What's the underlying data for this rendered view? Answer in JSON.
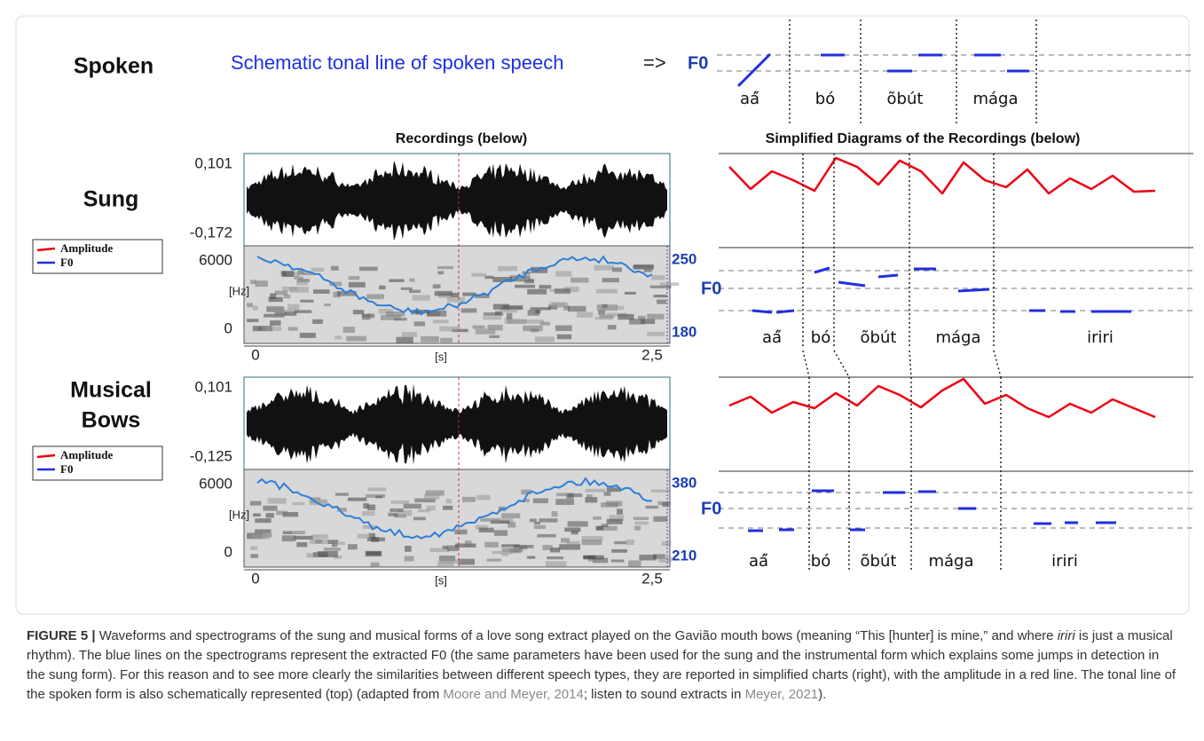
{
  "spoken": {
    "label": "Spoken",
    "caption": "Schematic tonal line of spoken speech",
    "arrow": "=>",
    "f0": "F0",
    "syllables": [
      "aá̋",
      "bó",
      "õbút",
      "mága"
    ]
  },
  "headers": {
    "recordings": "Recordings (below)",
    "diagrams": "Simplified Diagrams of the Recordings (below)"
  },
  "sung": {
    "label": [
      "Sung"
    ],
    "legend": [
      "Amplitude",
      "F0"
    ],
    "wave_top": "0,101",
    "wave_bottom": "-0,172",
    "spec_top": "6000",
    "spec_unit": "[Hz]",
    "spec_bottom": "0",
    "f0_top": "250",
    "f0_bottom": "180",
    "time_start": "0",
    "time_unit": "[s]",
    "time_end": "2,5",
    "f0": "F0",
    "syllables": [
      "aá̋",
      "bó",
      "õbút",
      "mága",
      "iriri"
    ]
  },
  "bows": {
    "label": [
      "Musical",
      "Bows"
    ],
    "legend": [
      "Amplitude",
      "F0"
    ],
    "wave_top": "0,101",
    "wave_bottom": "-0,125",
    "spec_top": "6000",
    "spec_unit": "[Hz]",
    "spec_bottom": "0",
    "f0_top": "380",
    "f0_bottom": "210",
    "time_start": "0",
    "time_unit": "[s]",
    "time_end": "2,5",
    "f0": "F0",
    "syllables": [
      "aá̋",
      "bó",
      "õbút",
      "mága",
      "iriri"
    ]
  },
  "caption": {
    "figure": "FIGURE 5 |",
    "text1": " Waveforms and spectrograms of the sung and musical forms of a love song extract played on the Gavião mouth bows (meaning “This [hunter] is mine,” and where ",
    "italic": "iriri",
    "text2": " is just a musical rhythm). The blue lines on the spectrograms represent the extracted F0 (the same parameters have been used for the sung and the instrumental form which explains some jumps in detection in the sung form). For this reason and to see more clearly the similarities between different speech types, they are reported in simplified charts (right), with the amplitude in a red line. The tonal line of the spoken form is also schematically represented (top) (adapted from ",
    "ref1": "Moore and Meyer, 2014",
    "text3": "; listen to sound extracts in ",
    "ref2": "Meyer, 2021",
    "text4": ")."
  }
}
